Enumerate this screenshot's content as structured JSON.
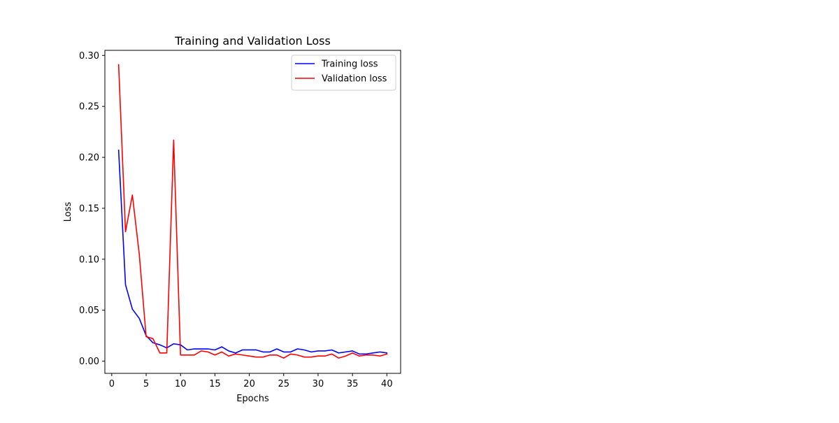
{
  "chart_data": {
    "type": "line",
    "title": "Training and Validation Loss",
    "xlabel": "Epochs",
    "ylabel": "Loss",
    "xlim": [
      -1,
      42
    ],
    "ylim": [
      -0.012,
      0.305
    ],
    "xticks": [
      0,
      5,
      10,
      15,
      20,
      25,
      30,
      35,
      40
    ],
    "yticks": [
      0.0,
      0.05,
      0.1,
      0.15,
      0.2,
      0.25,
      0.3
    ],
    "ytick_labels": [
      "0.00",
      "0.05",
      "0.10",
      "0.15",
      "0.20",
      "0.25",
      "0.30"
    ],
    "grid": false,
    "legend_position": "upper right",
    "x": [
      1,
      2,
      3,
      4,
      5,
      6,
      7,
      8,
      9,
      10,
      11,
      12,
      13,
      14,
      15,
      16,
      17,
      18,
      19,
      20,
      21,
      22,
      23,
      24,
      25,
      26,
      27,
      28,
      29,
      30,
      31,
      32,
      33,
      34,
      35,
      36,
      37,
      38,
      39,
      40
    ],
    "series": [
      {
        "name": "Training loss",
        "color": "#0000ff",
        "values": [
          0.207,
          0.075,
          0.051,
          0.042,
          0.025,
          0.018,
          0.016,
          0.013,
          0.017,
          0.016,
          0.011,
          0.012,
          0.012,
          0.012,
          0.011,
          0.014,
          0.01,
          0.008,
          0.011,
          0.011,
          0.011,
          0.009,
          0.009,
          0.012,
          0.009,
          0.009,
          0.012,
          0.011,
          0.009,
          0.01,
          0.01,
          0.011,
          0.008,
          0.009,
          0.01,
          0.007,
          0.007,
          0.008,
          0.009,
          0.008
        ]
      },
      {
        "name": "Validation loss",
        "color": "#ff0000",
        "values": [
          0.291,
          0.127,
          0.163,
          0.105,
          0.024,
          0.022,
          0.008,
          0.008,
          0.217,
          0.006,
          0.006,
          0.006,
          0.01,
          0.009,
          0.006,
          0.009,
          0.005,
          0.007,
          0.006,
          0.005,
          0.004,
          0.004,
          0.006,
          0.006,
          0.003,
          0.007,
          0.006,
          0.004,
          0.004,
          0.005,
          0.005,
          0.007,
          0.003,
          0.005,
          0.008,
          0.005,
          0.006,
          0.006,
          0.005,
          0.007
        ]
      }
    ]
  }
}
